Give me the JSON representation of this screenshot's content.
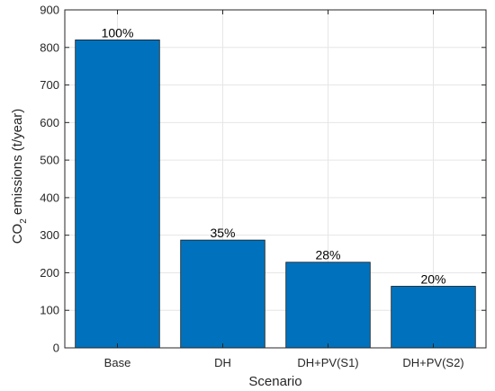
{
  "chart_data": {
    "type": "bar",
    "title": "",
    "xlabel": "Scenario",
    "ylabel": {
      "prefix": "CO",
      "subscript": "2",
      "suffix": " emissions (t/year)"
    },
    "categories": [
      "Base",
      "DH",
      "DH+PV(S1)",
      "DH+PV(S2)"
    ],
    "values": [
      820,
      287,
      228,
      164
    ],
    "data_labels": [
      "100%",
      "35%",
      "28%",
      "20%"
    ],
    "ylim": [
      0,
      900
    ],
    "yticks": [
      0,
      100,
      200,
      300,
      400,
      500,
      600,
      700,
      800,
      900
    ],
    "grid": true,
    "legend": "none",
    "bar_color": "#0072BD",
    "bar_edge_color": "#1a1a1a",
    "grid_color": "#e6e6e6",
    "axis_color": "#262626"
  }
}
